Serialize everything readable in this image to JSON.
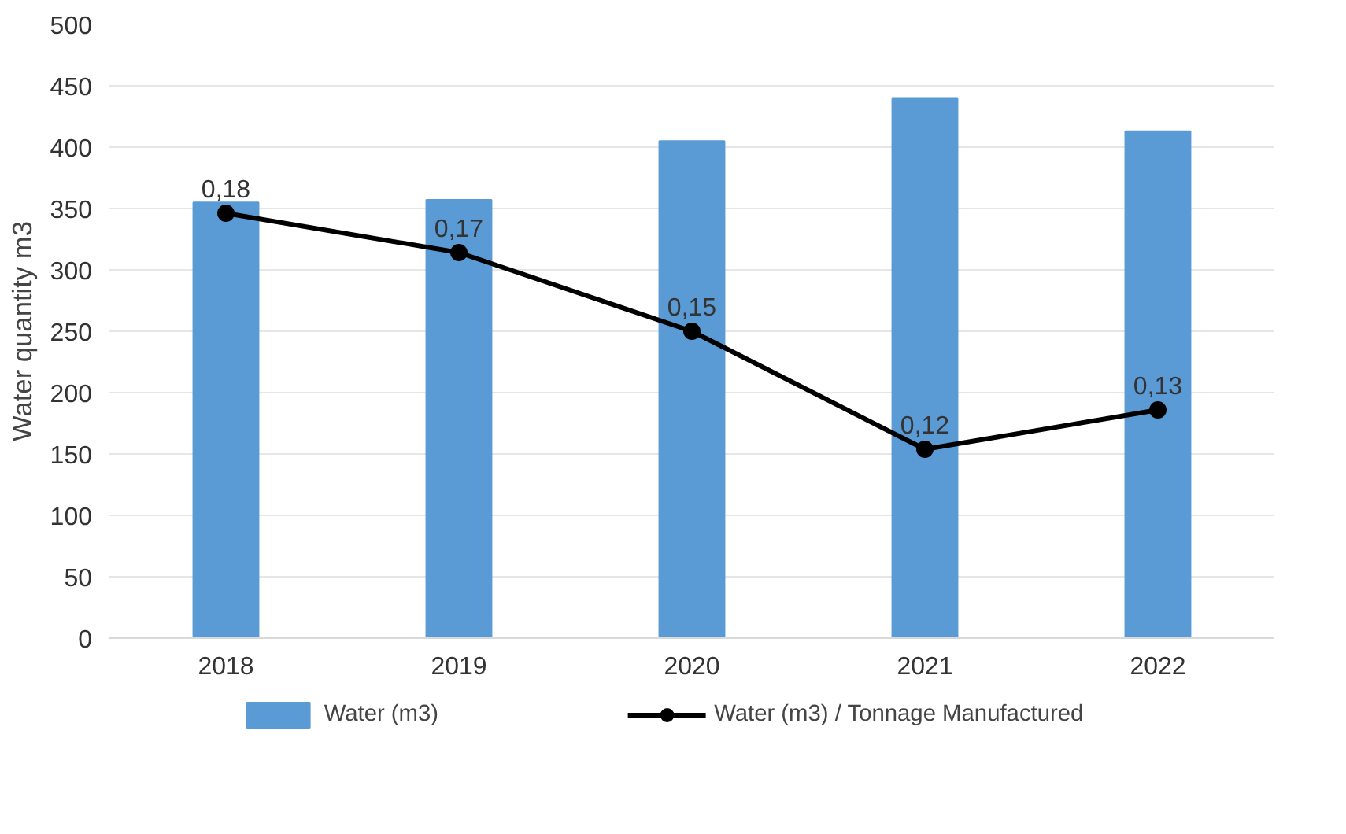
{
  "chart_data": {
    "type": "bar",
    "ylabel": "Water quantity m3",
    "categories": [
      "2018",
      "2019",
      "2020",
      "2021",
      "2022"
    ],
    "series": [
      {
        "name": "Water (m3)",
        "color": "#5b9bd5",
        "values": [
          355,
          357,
          405,
          440,
          413
        ]
      },
      {
        "name": "Water (m3) / Tonnage Manufactured",
        "type": "line",
        "axis": "y2",
        "color": "#000000",
        "marker": "circle",
        "values": [
          0.18,
          0.17,
          0.15,
          0.12,
          0.13
        ],
        "value_labels": [
          "0,18",
          "0,17",
          "0,15",
          "0,12",
          "0,13"
        ]
      }
    ],
    "ylim": [
      0,
      500
    ],
    "yticks": [
      0,
      50,
      100,
      150,
      200,
      250,
      300,
      350,
      400,
      450,
      500
    ],
    "grid": "y",
    "legend": "bottom"
  }
}
